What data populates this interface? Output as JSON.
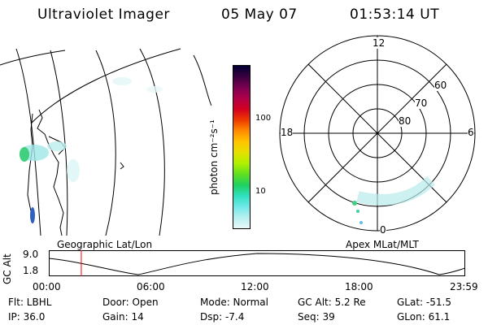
{
  "header": {
    "instrument": "Ultraviolet Imager",
    "date": "05 May 07",
    "time": "01:53:14 UT"
  },
  "colorbar": {
    "unit_label": "photon cm⁻²s⁻¹",
    "ticks": [
      "100",
      "10"
    ],
    "colors": [
      "#000033",
      "#3a0040",
      "#7a0050",
      "#b0004a",
      "#d40020",
      "#ee3a00",
      "#ff8a00",
      "#ffc400",
      "#e6e000",
      "#b0f000",
      "#60e020",
      "#20d060",
      "#30e0c0",
      "#70e8e8",
      "#b8f0f0",
      "#e8f8f8"
    ]
  },
  "map_left": {
    "projection_label": "Geographic Lat/Lon"
  },
  "map_right": {
    "projection_label": "Apex MLat/MLT",
    "mlt_labels": {
      "top": "12",
      "left": "18",
      "right": "6",
      "bottom": "0"
    },
    "lat_labels": [
      "60",
      "70",
      "80"
    ]
  },
  "altitude_plot": {
    "ylabel": "GC Alt",
    "y_ticks": [
      "9.0",
      "1.8"
    ],
    "x_ticks": [
      "00:00",
      "06:00",
      "12:00",
      "18:00",
      "23:59"
    ],
    "current_time_fraction": 0.078,
    "marker_color": "#ff0000"
  },
  "info": {
    "flt": "Flt: LBHL",
    "ip": "IP: 36.0",
    "door": "Door: Open",
    "gain": "Gain: 14",
    "mode": "Mode: Normal",
    "dsp": "Dsp:    -7.4",
    "gcalt": "GC Alt: 5.2 Re",
    "seq": "Seq: 39",
    "glat": "GLat:  -51.5",
    "glon": "GLon:  61.1"
  }
}
